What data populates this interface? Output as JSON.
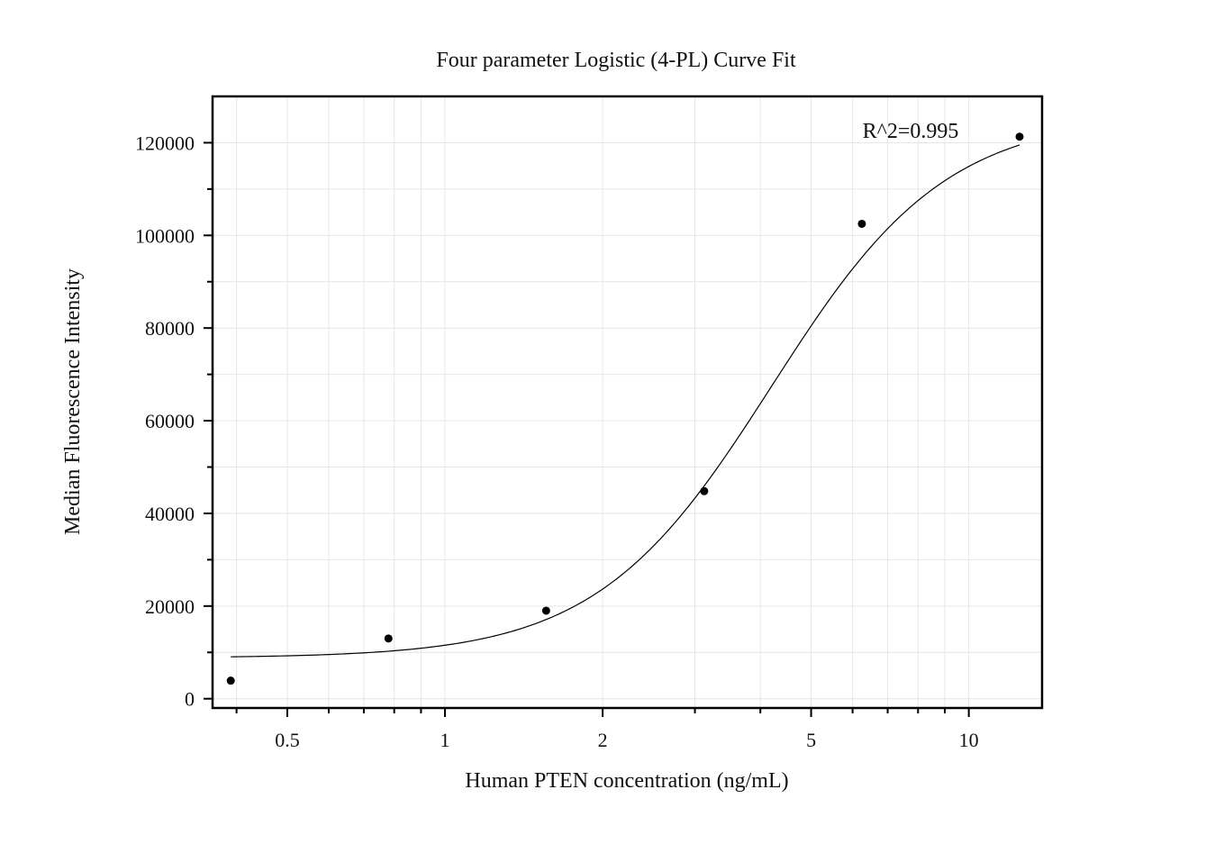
{
  "chart_data": {
    "type": "scatter",
    "title": "Four parameter Logistic (4-PL) Curve Fit",
    "xlabel": "Human PTEN concentration (ng/mL)",
    "ylabel": "Median Fluorescence Intensity",
    "x_scale": "log",
    "xlim": [
      0.36,
      13.8
    ],
    "ylim": [
      -2000,
      130000
    ],
    "x_ticks": [
      0.5,
      1,
      2,
      5,
      10
    ],
    "x_tick_labels": [
      "0.5",
      "1",
      "2",
      "5",
      "10"
    ],
    "y_ticks": [
      0,
      20000,
      40000,
      60000,
      80000,
      100000,
      120000
    ],
    "y_tick_labels": [
      "0",
      "20000",
      "40000",
      "60000",
      "80000",
      "100000",
      "120000"
    ],
    "grid": true,
    "points": {
      "x": [
        0.39,
        0.78,
        1.56,
        3.125,
        6.25,
        12.5
      ],
      "y": [
        3900,
        13000,
        19000,
        44800,
        102500,
        121300
      ]
    },
    "fit_curve": {
      "model": "4PL",
      "A": 8800,
      "B": 2.6,
      "C": 4.2,
      "D": 126000,
      "x_range": [
        0.39,
        12.5
      ]
    },
    "annotation": "R^2=0.995",
    "colors": {
      "points": "#000000",
      "curve": "#000000",
      "grid": "#e6e6e6",
      "axis": "#000000"
    }
  }
}
